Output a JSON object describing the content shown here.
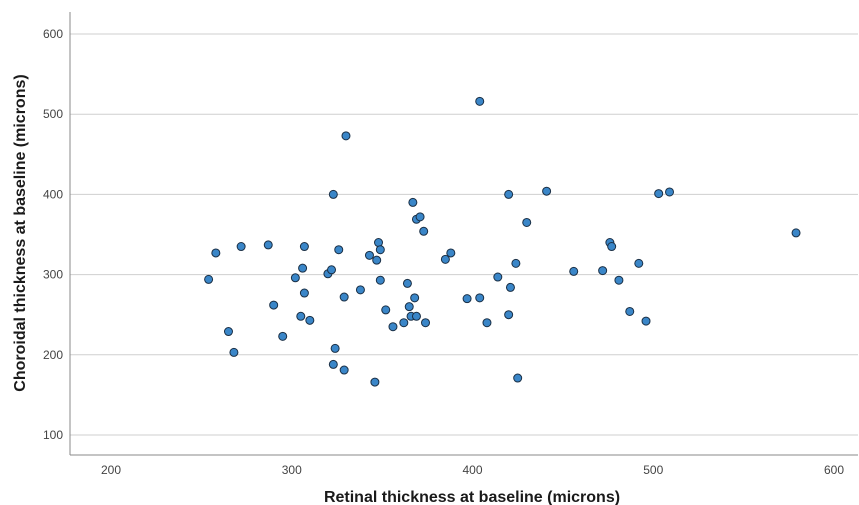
{
  "chart_data": {
    "type": "scatter",
    "title": "",
    "xlabel": "Retinal thickness at baseline (microns)",
    "ylabel": "Choroidal thickness at baseline (microns)",
    "xlim": [
      175,
      620
    ],
    "ylim": [
      75,
      630
    ],
    "xticks": [
      200,
      300,
      400,
      500,
      600
    ],
    "yticks": [
      100,
      200,
      300,
      400,
      500,
      600
    ],
    "xtick_labels": [
      "200",
      "300",
      "400",
      "500",
      "600"
    ],
    "ytick_labels": [
      "100",
      "200",
      "300",
      "400",
      "500",
      "600"
    ],
    "grid": "horizontal",
    "legend": "none",
    "marker_fill": "#3a86c8",
    "marker_edge": "#1a2f45",
    "points": [
      {
        "x": 254,
        "y": 294
      },
      {
        "x": 258,
        "y": 327
      },
      {
        "x": 265,
        "y": 229
      },
      {
        "x": 268,
        "y": 203
      },
      {
        "x": 272,
        "y": 335
      },
      {
        "x": 287,
        "y": 337
      },
      {
        "x": 290,
        "y": 262
      },
      {
        "x": 295,
        "y": 223
      },
      {
        "x": 302,
        "y": 296
      },
      {
        "x": 305,
        "y": 248
      },
      {
        "x": 306,
        "y": 308
      },
      {
        "x": 307,
        "y": 335
      },
      {
        "x": 307,
        "y": 277
      },
      {
        "x": 310,
        "y": 243
      },
      {
        "x": 320,
        "y": 301
      },
      {
        "x": 322,
        "y": 306
      },
      {
        "x": 323,
        "y": 400
      },
      {
        "x": 323,
        "y": 188
      },
      {
        "x": 324,
        "y": 208
      },
      {
        "x": 326,
        "y": 331
      },
      {
        "x": 329,
        "y": 272
      },
      {
        "x": 329,
        "y": 181
      },
      {
        "x": 330,
        "y": 473
      },
      {
        "x": 338,
        "y": 281
      },
      {
        "x": 343,
        "y": 324
      },
      {
        "x": 346,
        "y": 166
      },
      {
        "x": 347,
        "y": 318
      },
      {
        "x": 348,
        "y": 340
      },
      {
        "x": 349,
        "y": 331
      },
      {
        "x": 349,
        "y": 293
      },
      {
        "x": 352,
        "y": 256
      },
      {
        "x": 356,
        "y": 235
      },
      {
        "x": 362,
        "y": 240
      },
      {
        "x": 364,
        "y": 289
      },
      {
        "x": 365,
        "y": 260
      },
      {
        "x": 366,
        "y": 248
      },
      {
        "x": 367,
        "y": 390
      },
      {
        "x": 368,
        "y": 271
      },
      {
        "x": 369,
        "y": 369
      },
      {
        "x": 369,
        "y": 248
      },
      {
        "x": 371,
        "y": 372
      },
      {
        "x": 373,
        "y": 354
      },
      {
        "x": 374,
        "y": 240
      },
      {
        "x": 385,
        "y": 319
      },
      {
        "x": 388,
        "y": 327
      },
      {
        "x": 397,
        "y": 270
      },
      {
        "x": 404,
        "y": 516
      },
      {
        "x": 404,
        "y": 271
      },
      {
        "x": 408,
        "y": 240
      },
      {
        "x": 414,
        "y": 297
      },
      {
        "x": 420,
        "y": 400
      },
      {
        "x": 420,
        "y": 250
      },
      {
        "x": 421,
        "y": 284
      },
      {
        "x": 424,
        "y": 314
      },
      {
        "x": 425,
        "y": 171
      },
      {
        "x": 430,
        "y": 365
      },
      {
        "x": 441,
        "y": 404
      },
      {
        "x": 456,
        "y": 304
      },
      {
        "x": 472,
        "y": 305
      },
      {
        "x": 476,
        "y": 340
      },
      {
        "x": 477,
        "y": 335
      },
      {
        "x": 481,
        "y": 293
      },
      {
        "x": 487,
        "y": 254
      },
      {
        "x": 492,
        "y": 314
      },
      {
        "x": 496,
        "y": 242
      },
      {
        "x": 503,
        "y": 401
      },
      {
        "x": 509,
        "y": 403
      },
      {
        "x": 579,
        "y": 352
      }
    ]
  }
}
